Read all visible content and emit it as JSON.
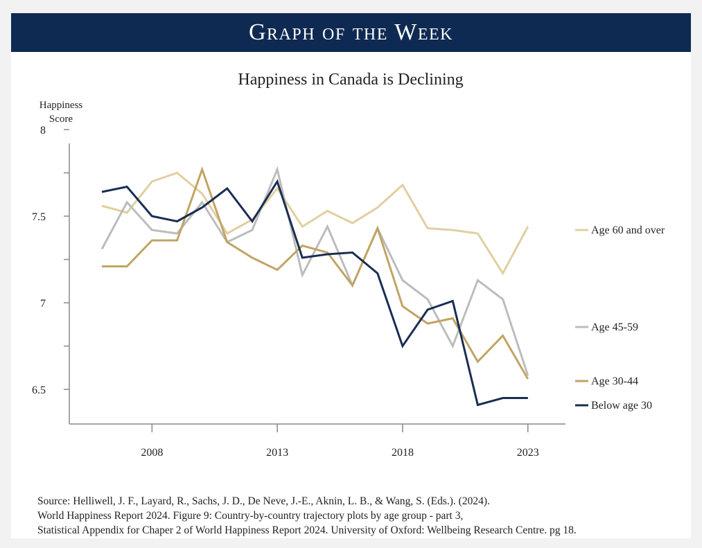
{
  "banner": {
    "title": "Graph of the Week"
  },
  "chart_data": {
    "type": "line",
    "title": "Happiness in Canada is Declining",
    "ylabel": [
      "Happiness",
      "Score"
    ],
    "xlabel": "",
    "ylim": [
      6.3,
      8.0
    ],
    "yticks": [
      6.5,
      7,
      7.5,
      8
    ],
    "ytick_labels": [
      "6.5",
      "7",
      "7.5",
      "8"
    ],
    "xlim": [
      2004.7,
      2024.5
    ],
    "xticks": [
      2008,
      2013,
      2018,
      2023
    ],
    "xtick_labels": [
      "2008",
      "2013",
      "2018",
      "2023"
    ],
    "x": [
      2006,
      2007,
      2008,
      2009,
      2010,
      2011,
      2012,
      2013,
      2014,
      2015,
      2016,
      2017,
      2018,
      2019,
      2020,
      2021,
      2022,
      2023
    ],
    "series": [
      {
        "name": "Age 60 and over",
        "color": "#e0cfa0",
        "values": [
          7.56,
          7.52,
          7.7,
          7.75,
          7.63,
          7.4,
          7.48,
          7.66,
          7.44,
          7.53,
          7.46,
          7.55,
          7.68,
          7.43,
          7.42,
          7.4,
          7.17,
          7.44
        ]
      },
      {
        "name": "Age 45-59",
        "color": "#bcbcbc",
        "values": [
          7.31,
          7.58,
          7.42,
          7.4,
          7.58,
          7.35,
          7.42,
          7.77,
          7.16,
          7.44,
          7.1,
          7.43,
          7.13,
          7.02,
          6.75,
          7.13,
          7.02,
          6.58
        ]
      },
      {
        "name": "Age 30-44",
        "color": "#c1a464",
        "values": [
          7.21,
          7.21,
          7.36,
          7.36,
          7.77,
          7.35,
          7.26,
          7.19,
          7.33,
          7.29,
          7.1,
          7.43,
          6.98,
          6.88,
          6.91,
          6.66,
          6.81,
          6.56
        ]
      },
      {
        "name": "Below age 30",
        "color": "#1a2d52",
        "values": [
          7.64,
          7.67,
          7.5,
          7.47,
          7.55,
          7.66,
          7.47,
          7.7,
          7.26,
          7.28,
          7.29,
          7.17,
          6.75,
          6.96,
          7.01,
          6.41,
          6.45,
          6.45
        ]
      }
    ]
  },
  "source": {
    "lines": [
      "Source: Helliwell, J. F., Layard, R., Sachs, J. D., De Neve, J.-E., Aknin, L. B., & Wang, S. (Eds.). (2024).",
      "World Happiness Report 2024. Figure 9: Country-by-country trajectory plots by age group - part 3,",
      "Statistical Appendix for Chaper 2 of World Happiness Report 2024. University of Oxford: Wellbeing Research Centre. pg 18."
    ]
  }
}
